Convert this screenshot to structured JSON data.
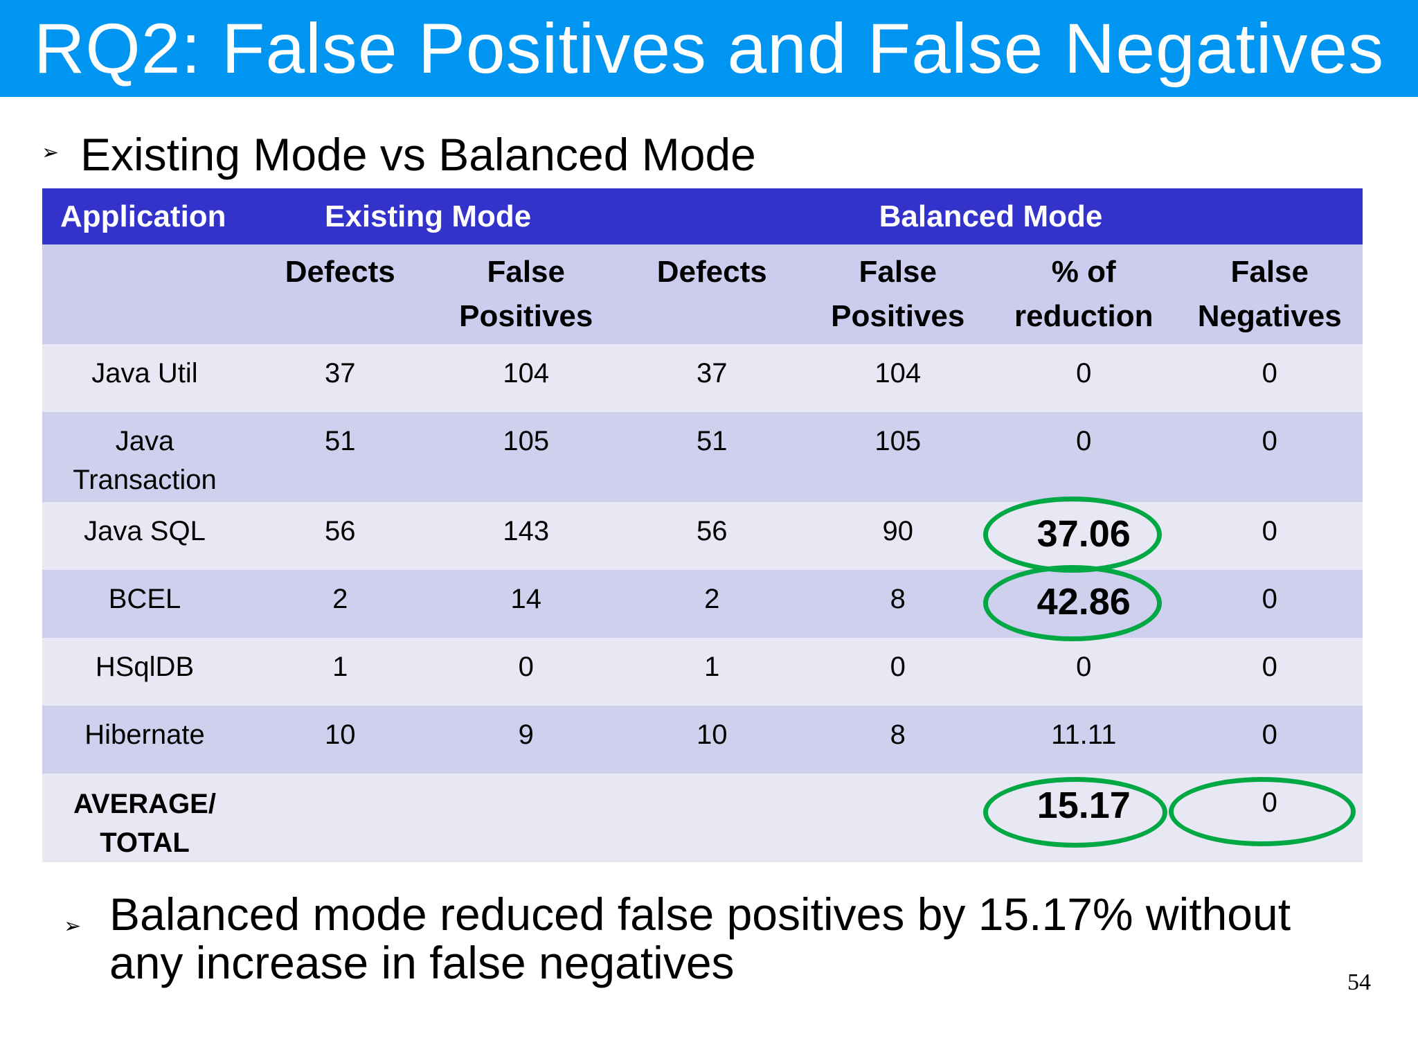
{
  "slide": {
    "title": "RQ2: False Positives and False Negatives",
    "bullet_top": "Existing Mode vs Balanced Mode",
    "bullet_bottom": "Balanced mode reduced false positives by 15.17% without any increase in false negatives",
    "bullet_marker": "➢",
    "page_number": "54"
  },
  "table": {
    "group_headers": {
      "application": "Application",
      "existing_mode": "Existing Mode",
      "balanced_mode": "Balanced Mode"
    },
    "sub_headers": {
      "existing_defects": "Defects",
      "existing_false_positives": "False Positives",
      "balanced_defects": "Defects",
      "balanced_false_positives": "False Positives",
      "reduction": "% of reduction",
      "false_negatives": "False Negatives"
    },
    "rows": [
      {
        "application": "Java Util",
        "ex_defects": "37",
        "ex_fp": "104",
        "bal_defects": "37",
        "bal_fp": "104",
        "reduction": "0",
        "fn": "0"
      },
      {
        "application": "Java Transaction",
        "ex_defects": "51",
        "ex_fp": "105",
        "bal_defects": "51",
        "bal_fp": "105",
        "reduction": "0",
        "fn": "0"
      },
      {
        "application": "Java SQL",
        "ex_defects": "56",
        "ex_fp": "143",
        "bal_defects": "56",
        "bal_fp": "90",
        "reduction": "37.06",
        "fn": "0"
      },
      {
        "application": "BCEL",
        "ex_defects": "2",
        "ex_fp": "14",
        "bal_defects": "2",
        "bal_fp": "8",
        "reduction": "42.86",
        "fn": "0"
      },
      {
        "application": "HSqlDB",
        "ex_defects": "1",
        "ex_fp": "0",
        "bal_defects": "1",
        "bal_fp": "0",
        "reduction": "0",
        "fn": "0"
      },
      {
        "application": "Hibernate",
        "ex_defects": "10",
        "ex_fp": "9",
        "bal_defects": "10",
        "bal_fp": "8",
        "reduction": "11.11",
        "fn": "0"
      }
    ],
    "total": {
      "label_line1": "AVERAGE/",
      "label_line2": "TOTAL",
      "reduction": "15.17",
      "fn": "0"
    }
  },
  "colors": {
    "title_bar": "#0095f0",
    "header_row": "#3333cc",
    "row_light": "#e8e8f5",
    "row_dark": "#cfcfee",
    "highlight_ring": "#00a844"
  }
}
